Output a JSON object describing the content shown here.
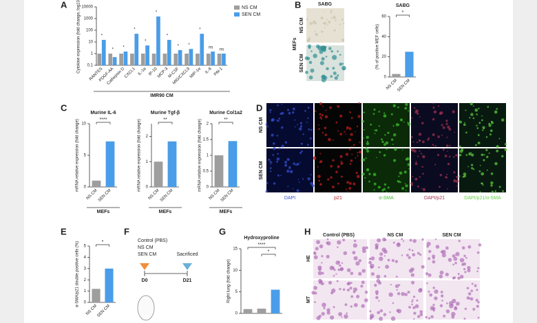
{
  "chart_data": [
    {
      "type": "bar",
      "log": true,
      "ylabel": "Cytokine expression (fold change, log10)",
      "xlabel": "IMR90 CM",
      "categories": [
        "RANTES",
        "PDGF-AA",
        "Cathepsin D",
        "CXCL1",
        "IL-1α",
        "IP-10",
        "MCP-3",
        "M-CSF",
        "MIG/CXCL9",
        "MIP-1α",
        "IL-6",
        "PAI-1"
      ],
      "series": [
        {
          "name": "NS CM",
          "color": "#9e9e9e",
          "values": [
            1,
            1,
            1,
            1,
            1,
            1,
            1,
            1,
            1,
            1,
            1,
            1
          ]
        },
        {
          "name": "SEN CM",
          "color": "#4a9de8",
          "values": [
            15,
            0.5,
            1.5,
            50,
            5,
            1500,
            15,
            2,
            2.5,
            50,
            1.5,
            1
          ]
        }
      ],
      "significance": [
        "*",
        "*",
        "*",
        "*",
        "*",
        "*",
        "*",
        "*",
        "*",
        "*",
        "ns",
        "ns"
      ],
      "ylim": [
        0.1,
        10000
      ],
      "yticks": [
        0.1,
        1,
        10,
        100,
        1000,
        10000
      ]
    },
    {
      "type": "bar",
      "title": "SABG",
      "ylabel": "(% of positive MEF cells)",
      "categories": [
        "NS CM",
        "SEN CM"
      ],
      "values": [
        3,
        25
      ],
      "colors": [
        "#9e9e9e",
        "#4a9de8"
      ],
      "significance": [
        "*"
      ],
      "ylim": [
        0,
        60
      ],
      "yticks": [
        0,
        20,
        40,
        60
      ]
    },
    {
      "type": "bar",
      "title": "Murine IL-6",
      "ylabel": "mRNA relative expression (fold change)",
      "xlabel": "MEFs",
      "categories": [
        "NS CM",
        "SEN CM"
      ],
      "values": [
        1,
        7.2
      ],
      "colors": [
        "#9e9e9e",
        "#4a9de8"
      ],
      "significance": [
        "****"
      ],
      "ylim": [
        0,
        10
      ],
      "yticks": [
        0,
        5,
        10
      ]
    },
    {
      "type": "bar",
      "title": "Murine Tgf-β",
      "ylabel": "mRNA relative expression (fold change)",
      "xlabel": "MEFs",
      "categories": [
        "NS CM",
        "SEN CM"
      ],
      "values": [
        1,
        1.8
      ],
      "colors": [
        "#9e9e9e",
        "#4a9de8"
      ],
      "significance": [
        "**"
      ],
      "ylim": [
        0,
        2.5
      ],
      "yticks": [
        0,
        1,
        2
      ]
    },
    {
      "type": "bar",
      "title": "Murine Col1a2",
      "ylabel": "mRNA relative expression (fold change)",
      "xlabel": "MEFs",
      "categories": [
        "NS CM",
        "SEN CM"
      ],
      "values": [
        1,
        1.45
      ],
      "colors": [
        "#9e9e9e",
        "#4a9de8"
      ],
      "significance": [
        "**"
      ],
      "ylim": [
        0,
        2
      ],
      "yticks": [
        0,
        0.5,
        1,
        1.5,
        2
      ]
    },
    {
      "type": "bar",
      "ylabel": "α-SMA/p21 double positive cells (%)",
      "categories": [
        "NS CM",
        "SEN CM"
      ],
      "values": [
        1.2,
        3.0
      ],
      "colors": [
        "#9e9e9e",
        "#4a9de8"
      ],
      "significance": [
        "*"
      ],
      "ylim": [
        0,
        5
      ],
      "yticks": [
        0,
        1,
        2,
        3,
        4,
        5
      ]
    },
    {
      "type": "bar",
      "title": "Hydroxyproline",
      "ylabel": "Right lung (fold change)",
      "categories": [
        null,
        null,
        null
      ],
      "values": [
        1,
        1.1,
        5.5
      ],
      "colors": [
        "#9e9e9e",
        "#9e9e9e",
        "#4a9de8"
      ],
      "significance": [
        "****",
        "*"
      ],
      "ylim": [
        0,
        15
      ],
      "yticks": [
        0,
        5,
        10,
        15
      ]
    }
  ],
  "figure": {
    "panel_letters": [
      "A",
      "B",
      "C",
      "D",
      "E",
      "F",
      "G",
      "H"
    ],
    "b_images": {
      "header": "SABG",
      "group": "MEFs",
      "rows": [
        "NS CM",
        "SEN CM"
      ]
    },
    "d_images": {
      "rows": [
        "NS CM",
        "SEN CM"
      ],
      "columns": [
        "DAPI",
        "p21",
        "α-SMA",
        "DAPI/p21",
        "DAPI/p21/α-SMA"
      ]
    },
    "f_diagram": {
      "groups": [
        "Control (PBS)",
        "NS CM",
        "SEN CM"
      ],
      "end": "Sacrificed",
      "start_day": "D0",
      "end_day": "D21"
    },
    "h_images": {
      "columns": [
        "Control (PBS)",
        "NS CM",
        "SEN CM"
      ],
      "rows": [
        "HE",
        "MT"
      ]
    }
  }
}
